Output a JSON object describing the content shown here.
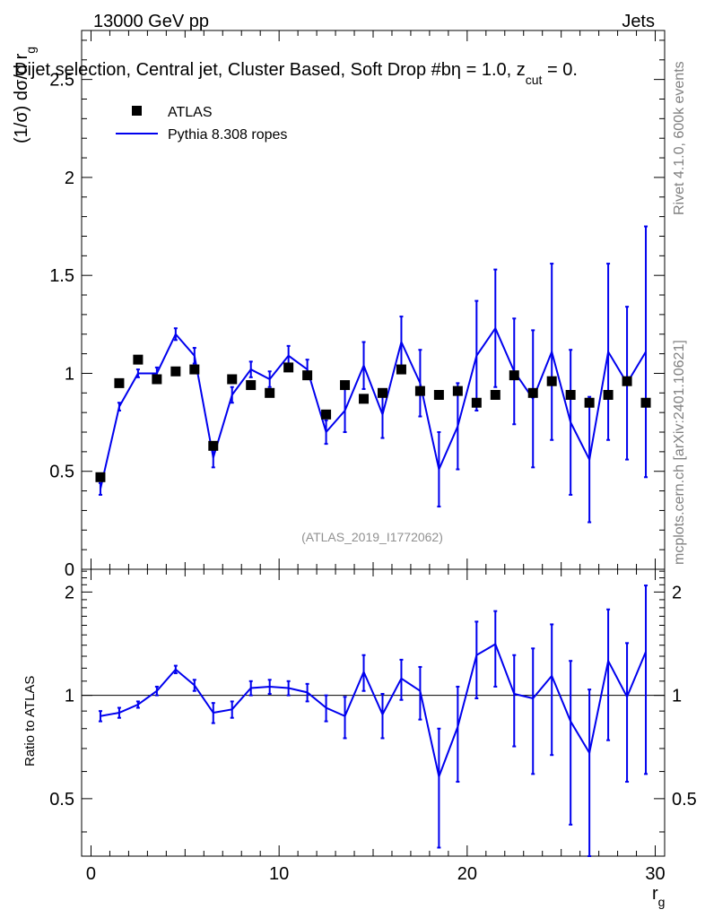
{
  "header": {
    "left": "13000 GeV pp",
    "right": "Jets",
    "selection": "Dijet selection, Central jet, Cluster Based, Soft Drop #beta = 1.0, z_cut = 0.",
    "selection_main": "Dijet selection, Central jet, Cluster Based, Soft Drop #b",
    "selection_eta": "η = 1.0, z",
    "selection_cut": "cut",
    "selection_tail": " = 0."
  },
  "side": {
    "rivet": "Rivet 4.1.0,  600k events",
    "mcplots": "mcplots.cern.ch [arXiv:2401.10621]"
  },
  "watermark": "(ATLAS_2019_I1772062)",
  "chart_data": [
    {
      "type": "scatter",
      "panel": "main",
      "ylabel": "(1/σ) dσ/d r",
      "ylabel_sub": "g",
      "xlim": [
        -0.5,
        30.5
      ],
      "ylim": [
        0,
        2.75
      ],
      "yticks": [
        0,
        0.5,
        1,
        1.5,
        2,
        2.5
      ],
      "ytick_labels": [
        "0",
        "0.5",
        "1",
        "1.5",
        "2",
        "2.5"
      ],
      "legend": [
        {
          "name": "ATLAS",
          "style": "marker"
        },
        {
          "name": "Pythia 8.308 ropes",
          "style": "line"
        }
      ],
      "x": [
        0.5,
        1.5,
        2.5,
        3.5,
        4.5,
        5.5,
        6.5,
        7.5,
        8.5,
        9.5,
        10.5,
        11.5,
        12.5,
        13.5,
        14.5,
        15.5,
        16.5,
        17.5,
        18.5,
        19.5,
        20.5,
        21.5,
        22.5,
        23.5,
        24.5,
        25.5,
        26.5,
        27.5,
        28.5,
        29.5
      ],
      "series": [
        {
          "name": "ATLAS",
          "values": [
            0.47,
            0.95,
            1.07,
            0.97,
            1.01,
            1.02,
            0.63,
            0.97,
            0.94,
            0.9,
            1.03,
            0.99,
            0.79,
            0.94,
            0.87,
            0.9,
            1.02,
            0.91,
            0.89,
            0.91,
            0.85,
            0.89,
            0.99,
            0.9,
            0.96,
            0.89,
            0.85,
            0.89,
            0.96,
            0.85
          ]
        },
        {
          "name": "Pythia 8.308 ropes",
          "values": [
            0.41,
            0.83,
            1.0,
            1.0,
            1.2,
            1.09,
            0.57,
            0.89,
            1.02,
            0.97,
            1.09,
            1.02,
            0.7,
            0.81,
            1.04,
            0.79,
            1.16,
            0.95,
            0.51,
            0.73,
            1.09,
            1.23,
            1.01,
            0.87,
            1.11,
            0.75,
            0.56,
            1.11,
            0.95,
            1.11
          ],
          "errors": [
            0.03,
            0.02,
            0.02,
            0.03,
            0.03,
            0.04,
            0.05,
            0.04,
            0.04,
            0.04,
            0.05,
            0.05,
            0.06,
            0.11,
            0.12,
            0.12,
            0.13,
            0.17,
            0.19,
            0.22,
            0.28,
            0.3,
            0.27,
            0.35,
            0.45,
            0.37,
            0.32,
            0.45,
            0.39,
            0.64
          ]
        }
      ]
    },
    {
      "type": "line",
      "panel": "ratio",
      "ylabel": "Ratio to ATLAS",
      "xlabel": "r",
      "xlabel_sub": "g",
      "xlim": [
        -0.5,
        30.5
      ],
      "ylim": [
        0.34,
        2.33
      ],
      "xticks": [
        0,
        10,
        20,
        30
      ],
      "xtick_labels": [
        "0",
        "10",
        "20",
        "30"
      ],
      "yticks": [
        0.5,
        1,
        2
      ],
      "ytick_labels": [
        "0.5",
        "1",
        "2"
      ],
      "reference_line": 1,
      "x": [
        0.5,
        1.5,
        2.5,
        3.5,
        4.5,
        5.5,
        6.5,
        7.5,
        8.5,
        9.5,
        10.5,
        11.5,
        12.5,
        13.5,
        14.5,
        15.5,
        16.5,
        17.5,
        18.5,
        19.5,
        20.5,
        21.5,
        22.5,
        23.5,
        24.5,
        25.5,
        26.5,
        27.5,
        28.5,
        29.5
      ],
      "series": [
        {
          "name": "Pythia 8.308 ropes",
          "values": [
            0.87,
            0.89,
            0.94,
            1.03,
            1.19,
            1.07,
            0.89,
            0.91,
            1.05,
            1.06,
            1.05,
            1.02,
            0.92,
            0.87,
            1.17,
            0.88,
            1.12,
            1.03,
            0.58,
            0.81,
            1.31,
            1.41,
            1.01,
            0.98,
            1.14,
            0.84,
            0.68,
            1.26,
            0.99,
            1.34
          ],
          "errors": [
            0.03,
            0.03,
            0.02,
            0.03,
            0.03,
            0.04,
            0.06,
            0.05,
            0.05,
            0.05,
            0.05,
            0.06,
            0.08,
            0.12,
            0.14,
            0.13,
            0.15,
            0.18,
            0.22,
            0.25,
            0.33,
            0.35,
            0.3,
            0.39,
            0.47,
            0.42,
            0.36,
            0.52,
            0.43,
            0.75
          ]
        }
      ]
    }
  ],
  "colors": {
    "data": "#000000",
    "mc": "#0000ee",
    "watermark": "#909090",
    "side_text": "#808080"
  }
}
